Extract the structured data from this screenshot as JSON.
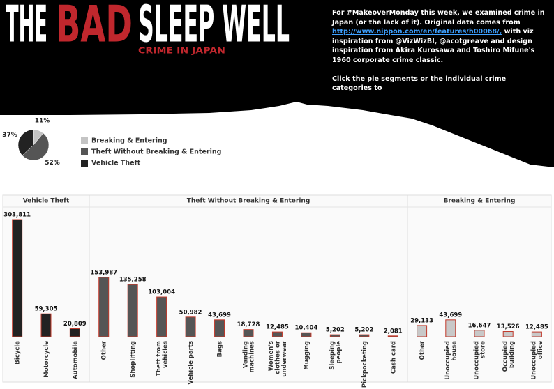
{
  "header": {
    "title_1": "THE",
    "title_2": "BAD",
    "title_3": "SLEEP WELL",
    "subtitle": "CRIME IN JAPAN",
    "description_before": "For #MakeoverMonday this week, we examined crime in Japan (or the lack of it). Original data comes from",
    "description_link": "http://www.nippon.com/en/features/h00068/,",
    "description_after": "with viz inspiration from @VizWizBI, @acotgreave and design inspiration from Akira Kurosawa and Toshiro Mifune's 1960 corporate crime classic.",
    "instruction": "Click the pie segments or the individual crime categories to"
  },
  "chart_data": [
    {
      "type": "pie",
      "categories": [
        "Breaking & Entering",
        "Theft Without Breaking & Entering",
        "Vehicle Theft"
      ],
      "values": [
        11,
        52,
        37
      ],
      "value_labels": [
        "11%",
        "52%",
        "37%"
      ],
      "colors": [
        "#c4c4c4",
        "#555555",
        "#222222"
      ]
    },
    {
      "type": "bar",
      "title": "Vehicle Theft",
      "categories": [
        "Bicycle",
        "Motorcycle",
        "Automobile"
      ],
      "values": [
        303811,
        59305,
        20809
      ],
      "value_labels": [
        "303,811",
        "59,305",
        "20,809"
      ],
      "color": "#222222",
      "edge_color": "#c0392b"
    },
    {
      "type": "bar",
      "title": "Theft Without Breaking & Entering",
      "categories": [
        "Other",
        "Shoplifting",
        "Theft from vehicles",
        "Vehicle parts",
        "Bags",
        "Vending machines",
        "Women's clothes or underwear",
        "Mugging",
        "Sleeping people",
        "Pickpocketing",
        "Cash card"
      ],
      "values": [
        153987,
        135258,
        103004,
        50982,
        43699,
        18728,
        12485,
        10404,
        5202,
        5202,
        2081
      ],
      "value_labels": [
        "153,987",
        "135,258",
        "103,004",
        "50,982",
        "43,699",
        "18,728",
        "12,485",
        "10,404",
        "5,202",
        "5,202",
        "2,081"
      ],
      "color": "#555555",
      "edge_color": "#c0392b"
    },
    {
      "type": "bar",
      "title": "Breaking & Entering",
      "categories": [
        "Other",
        "Unoccupied house",
        "Unoccupied store",
        "Occupied building",
        "Unoccupied office"
      ],
      "values": [
        29133,
        43699,
        16647,
        13526,
        12485
      ],
      "value_labels": [
        "29,133",
        "43,699",
        "16,647",
        "13,526",
        "12,485"
      ],
      "color": "#c8c8c8",
      "edge_color": "#c0392b"
    }
  ]
}
